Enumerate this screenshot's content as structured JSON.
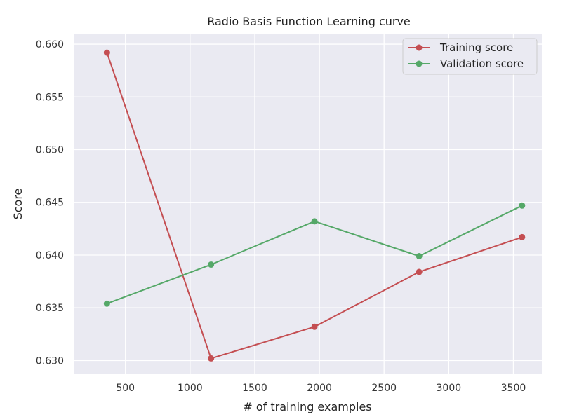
{
  "chart_data": {
    "type": "line",
    "title": "Radio Basis Function Learning curve",
    "xlabel": "# of training examples",
    "ylabel": "Score",
    "xlim": [
      100,
      3720
    ],
    "ylim": [
      0.6287,
      0.661
    ],
    "xticks": [
      500,
      1000,
      1500,
      2000,
      2500,
      3000,
      3500
    ],
    "yticks": [
      0.63,
      0.635,
      0.64,
      0.645,
      0.65,
      0.655,
      0.66
    ],
    "xtick_labels": [
      "500",
      "1000",
      "1500",
      "2000",
      "2500",
      "3000",
      "3500"
    ],
    "ytick_labels": [
      "0.630",
      "0.635",
      "0.640",
      "0.645",
      "0.650",
      "0.655",
      "0.660"
    ],
    "grid": true,
    "legend_position": "top-right",
    "series": [
      {
        "name": "Training score",
        "color": "#c44e52",
        "x": [
          357,
          1162,
          1962,
          2771,
          3567
        ],
        "y": [
          0.6592,
          0.6302,
          0.6332,
          0.6384,
          0.6417
        ]
      },
      {
        "name": "Validation score",
        "color": "#55a868",
        "x": [
          357,
          1162,
          1962,
          2771,
          3567
        ],
        "y": [
          0.6354,
          0.6391,
          0.6432,
          0.6399,
          0.6447
        ]
      }
    ]
  }
}
